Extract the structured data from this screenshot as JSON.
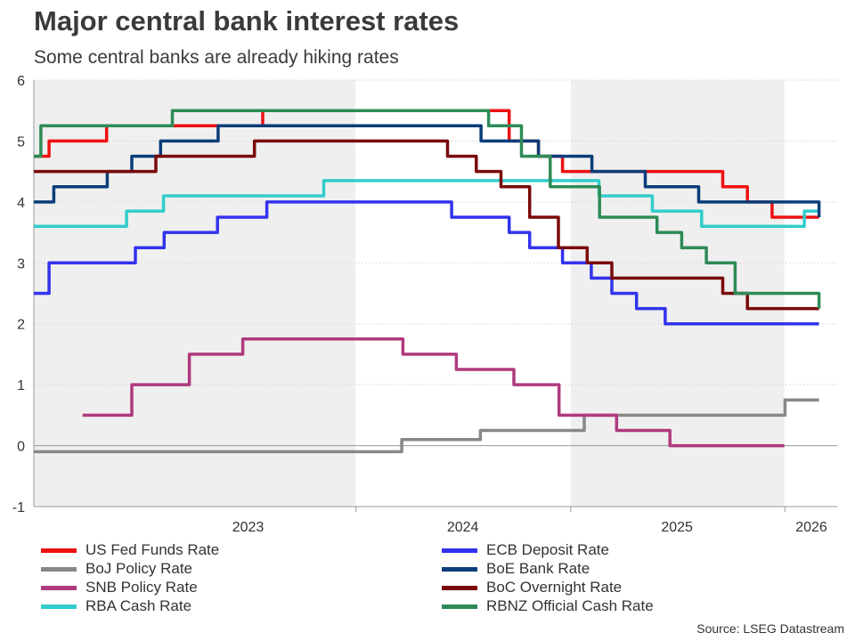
{
  "title": "Major central bank interest rates",
  "subtitle": "Some central banks are already hiking rates",
  "source": "Source: LSEG Datastream",
  "chart_data": {
    "type": "line",
    "title": "Major central bank interest rates",
    "subtitle": "Some central banks are already hiking rates",
    "xlabel": "",
    "ylabel": "",
    "xlim": [
      "2022-07-01",
      "2026-03-31"
    ],
    "ylim": [
      -1,
      6
    ],
    "yticks": [
      -1,
      0,
      1,
      2,
      3,
      4,
      5,
      6
    ],
    "year_labels": [
      {
        "label": "2023",
        "date": "2023-07-01"
      },
      {
        "label": "2024",
        "date": "2024-07-01"
      },
      {
        "label": "2025",
        "date": "2025-07-01"
      },
      {
        "label": "2026",
        "date": "2026-02-15"
      }
    ],
    "shaded_years": [
      {
        "start": "2022-07-01",
        "end": "2023-12-31"
      },
      {
        "start": "2025-01-01",
        "end": "2025-12-31"
      }
    ],
    "grid": "horizontal",
    "legend_position": "bottom",
    "series": [
      {
        "name": "US Fed Funds Rate",
        "color": "#ee1111",
        "x": [
          "2022-07-01",
          "2022-07-27",
          "2022-09-21",
          "2022-11-02",
          "2022-12-14",
          "2023-02-01",
          "2023-03-22",
          "2023-05-03",
          "2023-07-26",
          "2024-09-18",
          "2024-11-07",
          "2024-12-18",
          "2025-09-17",
          "2025-10-29",
          "2025-12-10",
          "2026-02-28"
        ],
        "y": [
          4.75,
          5.0,
          5.0,
          5.25,
          5.25,
          5.25,
          5.25,
          5.25,
          5.5,
          5.0,
          4.75,
          4.5,
          4.25,
          4.0,
          3.75,
          3.75
        ]
      },
      {
        "name": "BoJ Policy Rate",
        "color": "#888888",
        "x": [
          "2022-07-01",
          "2024-03-19",
          "2024-07-31",
          "2025-01-24",
          "2026-01-01",
          "2026-02-28"
        ],
        "y": [
          -0.1,
          0.1,
          0.25,
          0.5,
          0.75,
          0.75
        ]
      },
      {
        "name": "SNB Policy Rate",
        "color": "#b03a7e",
        "x": [
          "2022-09-22",
          "2022-12-15",
          "2023-03-23",
          "2023-06-22",
          "2024-03-21",
          "2024-06-20",
          "2024-09-26",
          "2024-12-12",
          "2025-03-20",
          "2025-06-19",
          "2025-12-31"
        ],
        "y": [
          0.5,
          1.0,
          1.5,
          1.75,
          1.5,
          1.25,
          1.0,
          0.5,
          0.25,
          0.0,
          0.0
        ]
      },
      {
        "name": "RBA Cash Rate",
        "color": "#33cccc",
        "x": [
          "2022-07-01",
          "2022-10-04",
          "2022-12-06",
          "2023-02-07",
          "2023-06-06",
          "2023-11-07",
          "2025-02-18",
          "2025-05-20",
          "2025-08-12",
          "2026-02-03",
          "2026-02-28"
        ],
        "y": [
          3.6,
          3.6,
          3.85,
          4.1,
          4.1,
          4.35,
          4.1,
          3.85,
          3.6,
          3.85,
          3.85
        ]
      },
      {
        "name": "ECB Deposit Rate",
        "color": "#3333ee",
        "x": [
          "2022-07-01",
          "2022-07-27",
          "2022-11-02",
          "2022-12-21",
          "2023-02-08",
          "2023-03-22",
          "2023-05-10",
          "2023-06-21",
          "2023-08-02",
          "2023-09-20",
          "2024-06-12",
          "2024-09-18",
          "2024-10-23",
          "2024-12-18",
          "2025-02-05",
          "2025-03-12",
          "2025-04-23",
          "2025-06-11",
          "2026-02-28"
        ],
        "y": [
          2.5,
          3.0,
          3.0,
          3.25,
          3.5,
          3.5,
          3.75,
          3.75,
          4.0,
          4.0,
          3.75,
          3.5,
          3.25,
          3.0,
          2.75,
          2.5,
          2.25,
          2.0,
          2.0
        ]
      },
      {
        "name": "BoE Bank Rate",
        "color": "#0a3d7a",
        "x": [
          "2022-07-01",
          "2022-08-04",
          "2022-11-03",
          "2022-12-15",
          "2023-02-02",
          "2023-03-23",
          "2023-05-11",
          "2023-06-22",
          "2023-08-03",
          "2024-08-01",
          "2024-11-07",
          "2025-02-06",
          "2025-05-08",
          "2025-08-07",
          "2026-02-28"
        ],
        "y": [
          4.0,
          4.25,
          4.5,
          4.75,
          5.0,
          5.0,
          5.25,
          5.25,
          5.25,
          5.0,
          4.75,
          4.5,
          4.25,
          4.0,
          3.75
        ]
      },
      {
        "name": "BoC Overnight Rate",
        "color": "#7a0a0a",
        "x": [
          "2022-07-01",
          "2022-12-07",
          "2023-01-25",
          "2023-06-07",
          "2023-07-12",
          "2024-06-05",
          "2024-07-24",
          "2024-09-04",
          "2024-10-23",
          "2024-12-11",
          "2025-01-29",
          "2025-03-12",
          "2025-09-17",
          "2025-10-29",
          "2026-02-28"
        ],
        "y": [
          4.5,
          4.5,
          4.75,
          4.75,
          5.0,
          4.75,
          4.5,
          4.25,
          3.75,
          3.25,
          3.0,
          2.75,
          2.5,
          2.25,
          2.25
        ]
      },
      {
        "name": "RBNZ Official Cash Rate",
        "color": "#2e8b57",
        "x": [
          "2022-07-01",
          "2022-07-13",
          "2022-10-05",
          "2022-11-23",
          "2023-02-22",
          "2023-04-05",
          "2024-08-14",
          "2024-10-09",
          "2024-11-27",
          "2025-02-19",
          "2025-05-28",
          "2025-07-09",
          "2025-08-20",
          "2025-10-08",
          "2026-02-28"
        ],
        "y": [
          4.75,
          5.25,
          5.25,
          5.25,
          5.5,
          5.5,
          5.25,
          4.75,
          4.25,
          3.75,
          3.5,
          3.25,
          3.0,
          2.5,
          2.25
        ]
      }
    ]
  },
  "legend": [
    {
      "label": "US Fed Funds Rate",
      "color": "#ee1111"
    },
    {
      "label": "BoJ Policy Rate",
      "color": "#888888"
    },
    {
      "label": "SNB Policy Rate",
      "color": "#b03a7e"
    },
    {
      "label": "RBA Cash Rate",
      "color": "#33cccc"
    },
    {
      "label": "ECB Deposit Rate",
      "color": "#3333ee"
    },
    {
      "label": "BoE Bank Rate",
      "color": "#0a3d7a"
    },
    {
      "label": "BoC Overnight Rate",
      "color": "#7a0a0a"
    },
    {
      "label": "RBNZ Official Cash Rate",
      "color": "#2e8b57"
    }
  ]
}
